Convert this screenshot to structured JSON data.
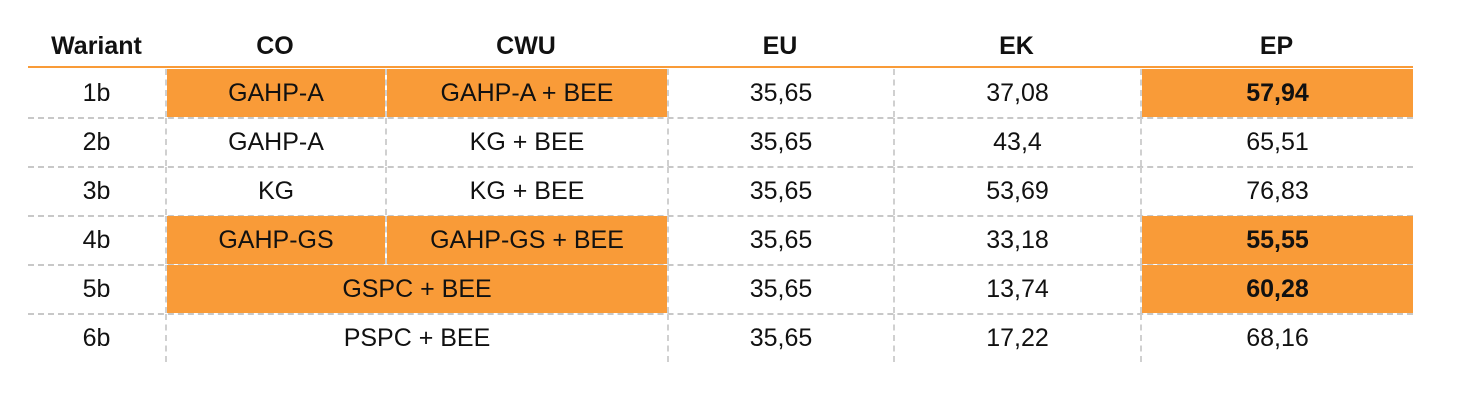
{
  "table": {
    "header": [
      "Wariant",
      "CO",
      "CWU",
      "EU",
      "EK",
      "EP"
    ],
    "rows": [
      [
        {
          "text": "1b"
        },
        {
          "text": "GAHP-A",
          "fill": "#f99b38"
        },
        {
          "text": "GAHP-A + BEE",
          "fill": "#f99b38"
        },
        {
          "text": "35,65"
        },
        {
          "text": "37,08"
        },
        {
          "text": "57,94",
          "fill": "#f99b38",
          "bold": true
        }
      ],
      [
        {
          "text": "2b"
        },
        {
          "text": "GAHP-A"
        },
        {
          "text": "KG + BEE"
        },
        {
          "text": "35,65"
        },
        {
          "text": "43,4"
        },
        {
          "text": "65,51"
        }
      ],
      [
        {
          "text": "3b"
        },
        {
          "text": "KG"
        },
        {
          "text": "KG + BEE"
        },
        {
          "text": "35,65"
        },
        {
          "text": "53,69"
        },
        {
          "text": "76,83"
        }
      ],
      [
        {
          "text": "4b"
        },
        {
          "text": "GAHP-GS",
          "fill": "#f99b38"
        },
        {
          "text": "GAHP-GS + BEE",
          "fill": "#f99b38"
        },
        {
          "text": "35,65"
        },
        {
          "text": "33,18"
        },
        {
          "text": "55,55",
          "fill": "#f99b38",
          "bold": true
        }
      ],
      [
        {
          "text": "5b"
        },
        {
          "text": "GSPC + BEE",
          "fill": "#f99b38"
        },
        {
          "text": "35,65"
        },
        {
          "text": "13,74"
        },
        {
          "text": "60,28",
          "fill": "#f99b38",
          "bold": true
        }
      ],
      [
        {
          "text": "6b"
        },
        {
          "text": "PSPC + BEE"
        },
        {
          "text": "35,65"
        },
        {
          "text": "17,22"
        },
        {
          "text": "68,16"
        }
      ]
    ]
  }
}
